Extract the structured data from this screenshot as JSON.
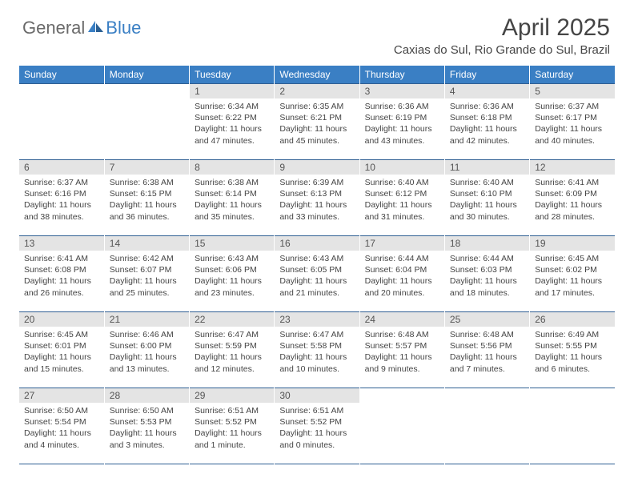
{
  "logo": {
    "text_general": "General",
    "text_blue": "Blue"
  },
  "header": {
    "month_title": "April 2025",
    "location": "Caxias do Sul, Rio Grande do Sul, Brazil"
  },
  "colors": {
    "header_bg": "#3a7fc4",
    "header_text": "#ffffff",
    "daynum_bg": "#e4e4e4",
    "row_border": "#2f5f93",
    "body_text": "#444444",
    "logo_gray": "#6a6a6a",
    "logo_blue": "#3a7fc4"
  },
  "day_headers": [
    "Sunday",
    "Monday",
    "Tuesday",
    "Wednesday",
    "Thursday",
    "Friday",
    "Saturday"
  ],
  "weeks": [
    [
      null,
      null,
      {
        "n": "1",
        "sr": "6:34 AM",
        "ss": "6:22 PM",
        "dl": "11 hours and 47 minutes."
      },
      {
        "n": "2",
        "sr": "6:35 AM",
        "ss": "6:21 PM",
        "dl": "11 hours and 45 minutes."
      },
      {
        "n": "3",
        "sr": "6:36 AM",
        "ss": "6:19 PM",
        "dl": "11 hours and 43 minutes."
      },
      {
        "n": "4",
        "sr": "6:36 AM",
        "ss": "6:18 PM",
        "dl": "11 hours and 42 minutes."
      },
      {
        "n": "5",
        "sr": "6:37 AM",
        "ss": "6:17 PM",
        "dl": "11 hours and 40 minutes."
      }
    ],
    [
      {
        "n": "6",
        "sr": "6:37 AM",
        "ss": "6:16 PM",
        "dl": "11 hours and 38 minutes."
      },
      {
        "n": "7",
        "sr": "6:38 AM",
        "ss": "6:15 PM",
        "dl": "11 hours and 36 minutes."
      },
      {
        "n": "8",
        "sr": "6:38 AM",
        "ss": "6:14 PM",
        "dl": "11 hours and 35 minutes."
      },
      {
        "n": "9",
        "sr": "6:39 AM",
        "ss": "6:13 PM",
        "dl": "11 hours and 33 minutes."
      },
      {
        "n": "10",
        "sr": "6:40 AM",
        "ss": "6:12 PM",
        "dl": "11 hours and 31 minutes."
      },
      {
        "n": "11",
        "sr": "6:40 AM",
        "ss": "6:10 PM",
        "dl": "11 hours and 30 minutes."
      },
      {
        "n": "12",
        "sr": "6:41 AM",
        "ss": "6:09 PM",
        "dl": "11 hours and 28 minutes."
      }
    ],
    [
      {
        "n": "13",
        "sr": "6:41 AM",
        "ss": "6:08 PM",
        "dl": "11 hours and 26 minutes."
      },
      {
        "n": "14",
        "sr": "6:42 AM",
        "ss": "6:07 PM",
        "dl": "11 hours and 25 minutes."
      },
      {
        "n": "15",
        "sr": "6:43 AM",
        "ss": "6:06 PM",
        "dl": "11 hours and 23 minutes."
      },
      {
        "n": "16",
        "sr": "6:43 AM",
        "ss": "6:05 PM",
        "dl": "11 hours and 21 minutes."
      },
      {
        "n": "17",
        "sr": "6:44 AM",
        "ss": "6:04 PM",
        "dl": "11 hours and 20 minutes."
      },
      {
        "n": "18",
        "sr": "6:44 AM",
        "ss": "6:03 PM",
        "dl": "11 hours and 18 minutes."
      },
      {
        "n": "19",
        "sr": "6:45 AM",
        "ss": "6:02 PM",
        "dl": "11 hours and 17 minutes."
      }
    ],
    [
      {
        "n": "20",
        "sr": "6:45 AM",
        "ss": "6:01 PM",
        "dl": "11 hours and 15 minutes."
      },
      {
        "n": "21",
        "sr": "6:46 AM",
        "ss": "6:00 PM",
        "dl": "11 hours and 13 minutes."
      },
      {
        "n": "22",
        "sr": "6:47 AM",
        "ss": "5:59 PM",
        "dl": "11 hours and 12 minutes."
      },
      {
        "n": "23",
        "sr": "6:47 AM",
        "ss": "5:58 PM",
        "dl": "11 hours and 10 minutes."
      },
      {
        "n": "24",
        "sr": "6:48 AM",
        "ss": "5:57 PM",
        "dl": "11 hours and 9 minutes."
      },
      {
        "n": "25",
        "sr": "6:48 AM",
        "ss": "5:56 PM",
        "dl": "11 hours and 7 minutes."
      },
      {
        "n": "26",
        "sr": "6:49 AM",
        "ss": "5:55 PM",
        "dl": "11 hours and 6 minutes."
      }
    ],
    [
      {
        "n": "27",
        "sr": "6:50 AM",
        "ss": "5:54 PM",
        "dl": "11 hours and 4 minutes."
      },
      {
        "n": "28",
        "sr": "6:50 AM",
        "ss": "5:53 PM",
        "dl": "11 hours and 3 minutes."
      },
      {
        "n": "29",
        "sr": "6:51 AM",
        "ss": "5:52 PM",
        "dl": "11 hours and 1 minute."
      },
      {
        "n": "30",
        "sr": "6:51 AM",
        "ss": "5:52 PM",
        "dl": "11 hours and 0 minutes."
      },
      null,
      null,
      null
    ]
  ],
  "labels": {
    "sunrise": "Sunrise:",
    "sunset": "Sunset:",
    "daylight": "Daylight:"
  }
}
